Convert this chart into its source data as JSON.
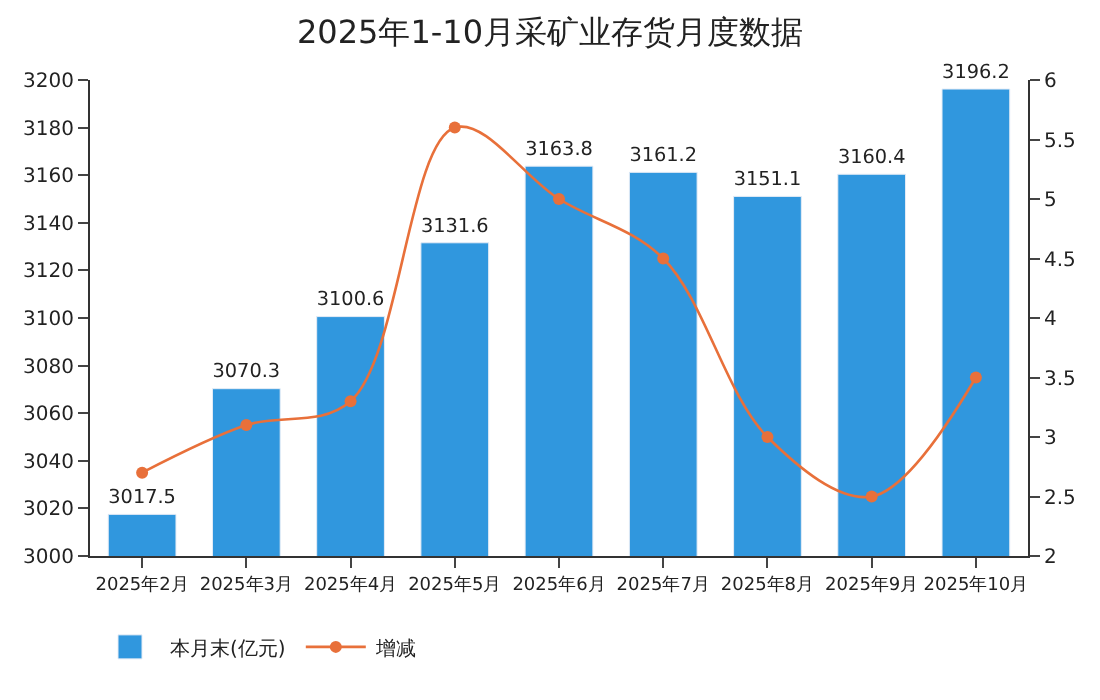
{
  "chart_data": {
    "type": "bar",
    "title": "2025年1-10月采矿业存货月度数据",
    "categories": [
      "2025年2月",
      "2025年3月",
      "2025年4月",
      "2025年5月",
      "2025年6月",
      "2025年7月",
      "2025年8月",
      "2025年9月",
      "2025年10月"
    ],
    "series": [
      {
        "name": "本月末(亿元)",
        "color": "#3097de",
        "values": [
          3017.5,
          3070.3,
          3100.6,
          3131.6,
          3163.8,
          3161.2,
          3151.1,
          3160.4,
          3196.2
        ],
        "data_labels": true
      },
      {
        "name": "增减",
        "type": "line",
        "axis": "y2",
        "color": "#e8703a",
        "marker": "circle",
        "values": [
          2.7,
          3.1,
          3.3,
          5.6,
          5.0,
          4.5,
          3.0,
          2.5,
          3.5
        ]
      }
    ],
    "ylim": [
      3000,
      3200
    ],
    "yticks": [
      3000,
      3020,
      3040,
      3060,
      3080,
      3100,
      3120,
      3140,
      3160,
      3180,
      3200
    ],
    "y2lim": [
      2,
      6
    ],
    "y2ticks": [
      2,
      2.5,
      3,
      3.5,
      4,
      4.5,
      5,
      5.5,
      6
    ],
    "grid": false,
    "legend": "bottom left"
  }
}
